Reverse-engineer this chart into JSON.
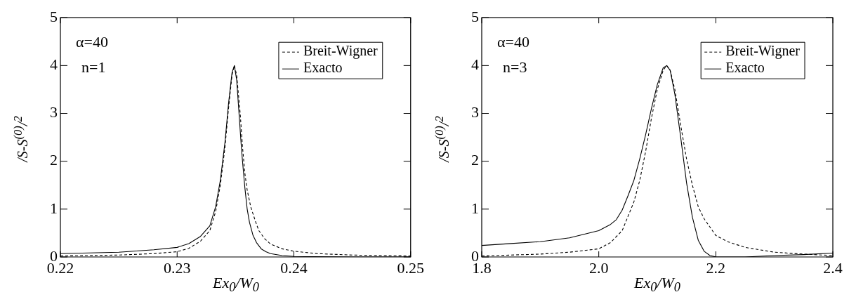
{
  "chart_data": [
    {
      "type": "line",
      "xlabel": "Ex$_{0}$/W$_{0}$",
      "ylabel": "/S-S$^{(0)}$/$^{2}$",
      "xlim": [
        0.22,
        0.25
      ],
      "xticks": [
        0.22,
        0.23,
        0.24,
        0.25
      ],
      "ylim": [
        0,
        5
      ],
      "yticks": [
        0,
        1,
        2,
        3,
        4,
        5
      ],
      "legend": "top right",
      "marker": "none",
      "annotations": [
        "α=40",
        "n=1"
      ],
      "series": [
        {
          "name": "Breit-Wigner",
          "color": "#000000",
          "line_style": "dashed",
          "x": [
            0.22,
            0.225,
            0.228,
            0.23,
            0.231,
            0.232,
            0.2328,
            0.2333,
            0.2337,
            0.2341,
            0.2344,
            0.2347,
            0.2349,
            0.2351,
            0.2354,
            0.2356,
            0.2358,
            0.236,
            0.2363,
            0.2367,
            0.237,
            0.2375,
            0.238,
            0.239,
            0.24,
            0.242,
            0.245,
            0.25
          ],
          "values": [
            0.02,
            0.04,
            0.07,
            0.11,
            0.18,
            0.33,
            0.55,
            0.95,
            1.5,
            2.3,
            3.1,
            3.8,
            4.0,
            3.8,
            3.0,
            2.3,
            1.75,
            1.4,
            1.05,
            0.75,
            0.55,
            0.38,
            0.27,
            0.17,
            0.12,
            0.07,
            0.04,
            0.02
          ]
        },
        {
          "name": "Exacto",
          "color": "#000000",
          "line_style": "solid",
          "x": [
            0.22,
            0.225,
            0.228,
            0.23,
            0.231,
            0.232,
            0.2328,
            0.2333,
            0.2337,
            0.2341,
            0.2344,
            0.2347,
            0.2349,
            0.2351,
            0.2353,
            0.2355,
            0.2356,
            0.2358,
            0.236,
            0.2362,
            0.2365,
            0.2368,
            0.2372,
            0.2376,
            0.238,
            0.239,
            0.24,
            0.245,
            0.25
          ],
          "values": [
            0.07,
            0.1,
            0.15,
            0.2,
            0.28,
            0.43,
            0.65,
            1.05,
            1.6,
            2.4,
            3.2,
            3.85,
            4.0,
            3.7,
            3.0,
            2.3,
            2.0,
            1.45,
            1.0,
            0.72,
            0.45,
            0.3,
            0.17,
            0.11,
            0.07,
            0.03,
            0.01,
            0,
            0
          ]
        }
      ]
    },
    {
      "type": "line",
      "xlabel": "Ex$_{0}$/W$_{0}$",
      "ylabel": "/S-S$^{(0)}$/$^{2}$",
      "xlim": [
        1.8,
        2.4
      ],
      "xticks": [
        {
          "value": 1.8,
          "label": "1.8"
        },
        {
          "value": 2,
          "label": "2.0"
        },
        {
          "value": 2.2,
          "label": "2.2"
        },
        {
          "value": 2.4,
          "label": "2.4"
        }
      ],
      "ylim": [
        0,
        5
      ],
      "yticks": [
        0,
        1,
        2,
        3,
        4,
        5
      ],
      "legend": "top right",
      "marker": "none",
      "annotations": [
        "α=40",
        "n=3"
      ],
      "series": [
        {
          "name": "Breit-Wigner",
          "color": "#000000",
          "line_style": "dashed",
          "x": [
            1.8,
            1.85,
            1.9,
            1.95,
            2.0,
            2.02,
            2.04,
            2.06,
            2.07,
            2.08,
            2.09,
            2.1,
            2.11,
            2.116,
            2.122,
            2.13,
            2.14,
            2.15,
            2.16,
            2.17,
            2.18,
            2.2,
            2.22,
            2.25,
            2.3,
            2.35,
            2.4
          ],
          "values": [
            0.02,
            0.04,
            0.06,
            0.1,
            0.17,
            0.3,
            0.55,
            1.15,
            1.6,
            2.2,
            2.9,
            3.5,
            3.9,
            4.0,
            3.9,
            3.5,
            2.75,
            2.05,
            1.5,
            1.05,
            0.8,
            0.45,
            0.32,
            0.2,
            0.1,
            0.06,
            0.03
          ]
        },
        {
          "name": "Exacto",
          "color": "#000000",
          "line_style": "solid",
          "x": [
            1.8,
            1.85,
            1.9,
            1.95,
            2.0,
            2.02,
            2.03,
            2.04,
            2.05,
            2.06,
            2.07,
            2.08,
            2.09,
            2.1,
            2.11,
            2.116,
            2.122,
            2.13,
            2.14,
            2.15,
            2.16,
            2.17,
            2.18,
            2.19,
            2.2,
            2.25,
            2.3,
            2.35,
            2.4
          ],
          "values": [
            0.24,
            0.28,
            0.32,
            0.4,
            0.55,
            0.68,
            0.78,
            0.98,
            1.28,
            1.6,
            2.05,
            2.55,
            3.1,
            3.6,
            3.95,
            4.0,
            3.9,
            3.4,
            2.5,
            1.55,
            0.83,
            0.35,
            0.12,
            0.03,
            0.0,
            0.0,
            0.03,
            0.05,
            0.08
          ]
        }
      ]
    }
  ]
}
